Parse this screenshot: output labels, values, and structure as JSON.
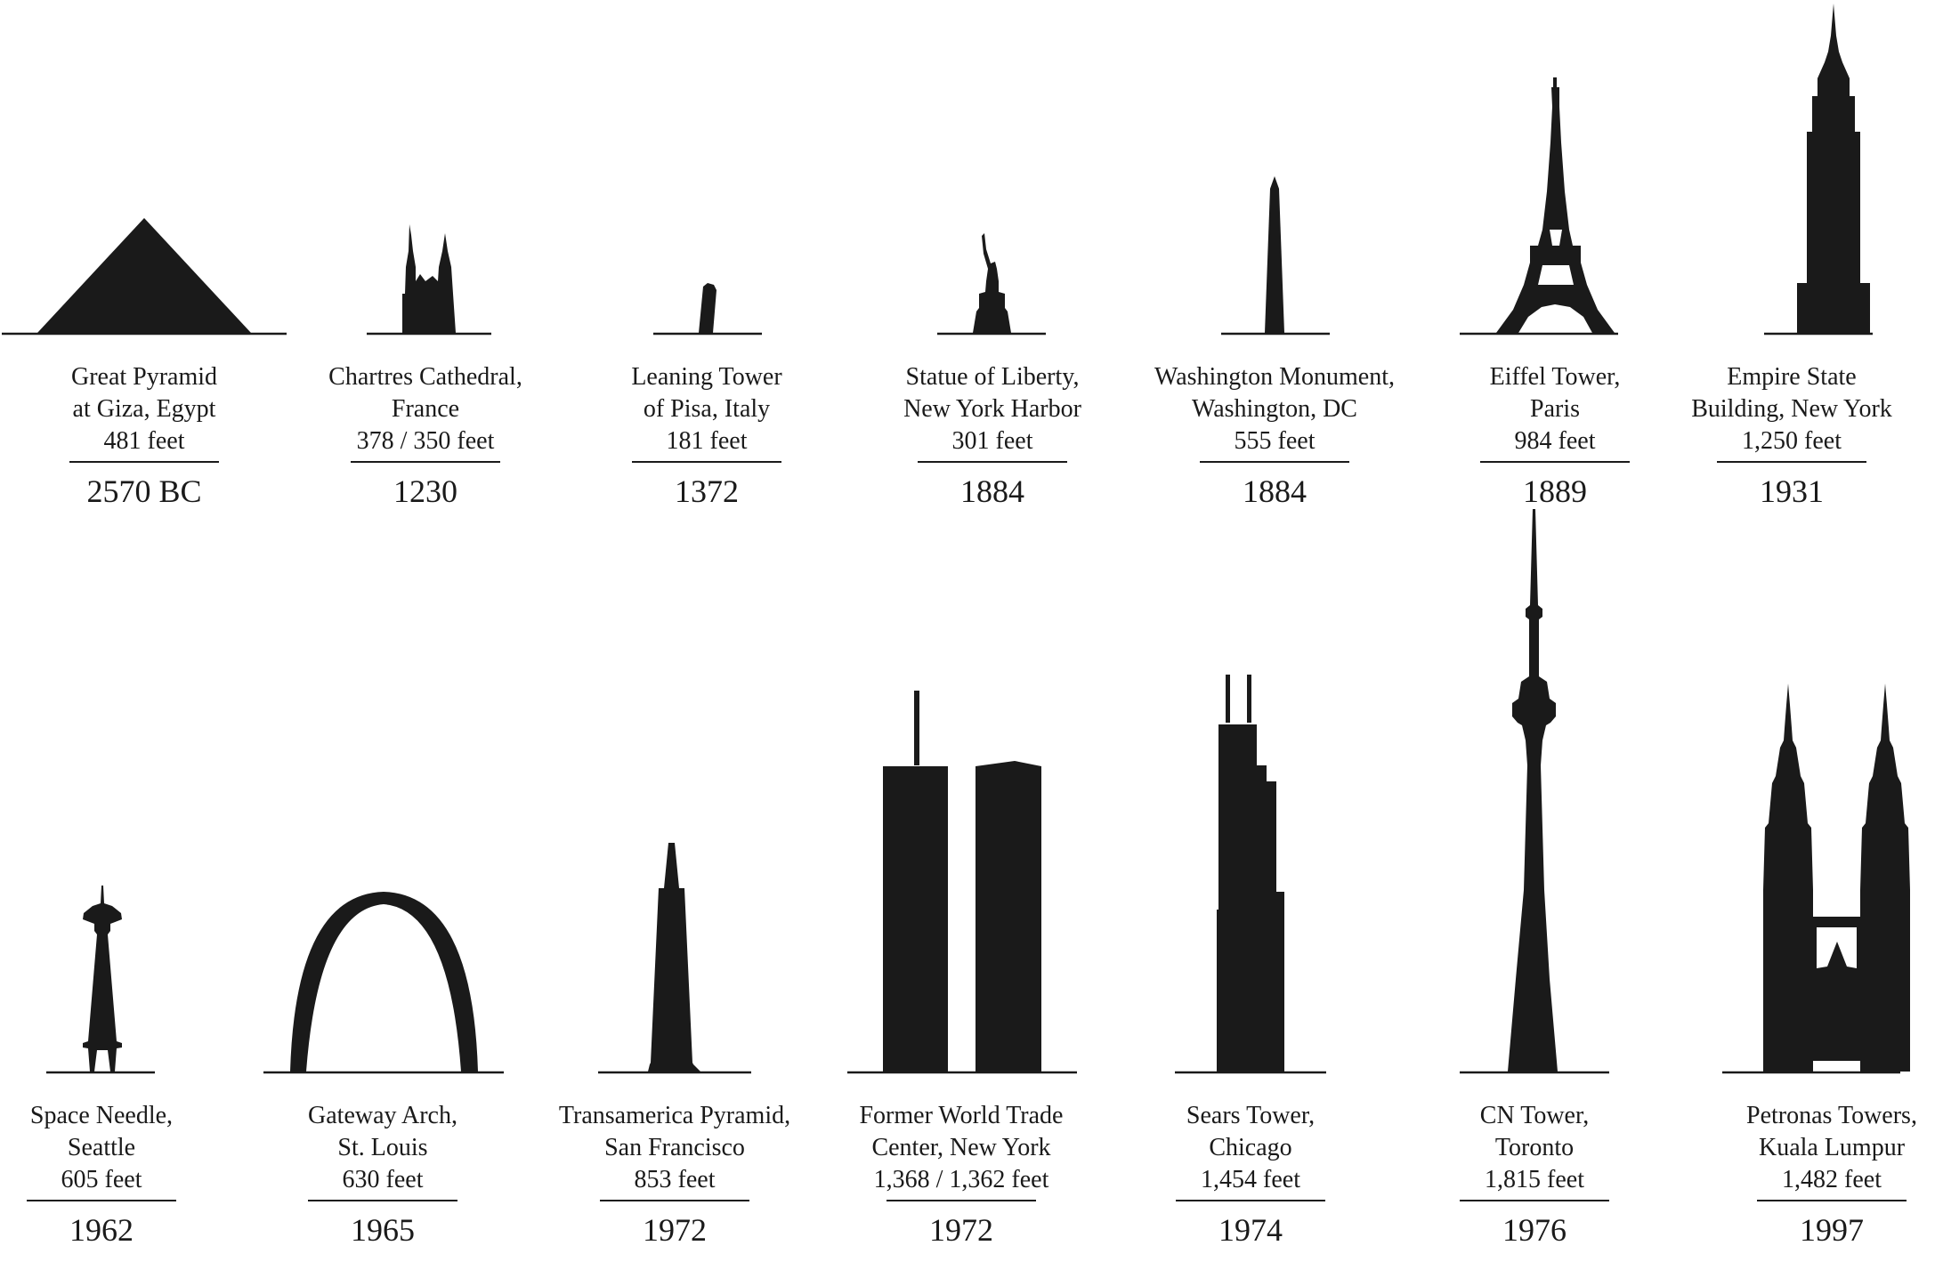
{
  "landmarks": [
    {
      "name_1": "Great Pyramid",
      "name_2": "at Giza, Egypt",
      "height": "481 feet",
      "year": "2570",
      "era": "BC",
      "silhouette": "pyramid-icon"
    },
    {
      "name_1": "Chartres Cathedral,",
      "name_2": "France",
      "height": "378 / 350 feet",
      "year": "1230",
      "silhouette": "cathedral-icon"
    },
    {
      "name_1": "Leaning Tower",
      "name_2": "of Pisa, Italy",
      "height": "181 feet",
      "year": "1372",
      "silhouette": "leaning-tower-icon"
    },
    {
      "name_1": "Statue of Liberty,",
      "name_2": "New York Harbor",
      "height": "301 feet",
      "year": "1884",
      "silhouette": "statue-icon"
    },
    {
      "name_1": "Washington Monument,",
      "name_2": "Washington, DC",
      "height": "555 feet",
      "year": "1884",
      "silhouette": "obelisk-icon"
    },
    {
      "name_1": "Eiffel Tower,",
      "name_2": "Paris",
      "height": "984 feet",
      "year": "1889",
      "silhouette": "eiffel-tower-icon"
    },
    {
      "name_1": "Empire State",
      "name_2": "Building, New York",
      "height": "1,250 feet",
      "year": "1931",
      "silhouette": "skyscraper-icon"
    },
    {
      "name_1": "Space Needle,",
      "name_2": "Seattle",
      "height": "605 feet",
      "year": "1962",
      "silhouette": "space-needle-icon"
    },
    {
      "name_1": "Gateway Arch,",
      "name_2": "St. Louis",
      "height": "630 feet",
      "year": "1965",
      "silhouette": "arch-icon"
    },
    {
      "name_1": "Transamerica Pyramid,",
      "name_2": "San Francisco",
      "height": "853 feet",
      "year": "1972",
      "silhouette": "spire-tower-icon"
    },
    {
      "name_1": "Former World Trade",
      "name_2": "Center, New York",
      "height": "1,368 / 1,362 feet",
      "year": "1972",
      "silhouette": "twin-towers-icon"
    },
    {
      "name_1": "Sears Tower,",
      "name_2": "Chicago",
      "height": "1,454 feet",
      "year": "1974",
      "silhouette": "stepped-tower-icon"
    },
    {
      "name_1": "CN Tower,",
      "name_2": "Toronto",
      "height": "1,815 feet",
      "year": "1976",
      "silhouette": "cn-tower-icon"
    },
    {
      "name_1": "Petronas Towers,",
      "name_2": "Kuala Lumpur",
      "height": "1,482 feet",
      "year": "1997",
      "silhouette": "petronas-towers-icon"
    }
  ],
  "colors": {
    "silhouette": "#1a1a1a",
    "background": "#ffffff"
  }
}
